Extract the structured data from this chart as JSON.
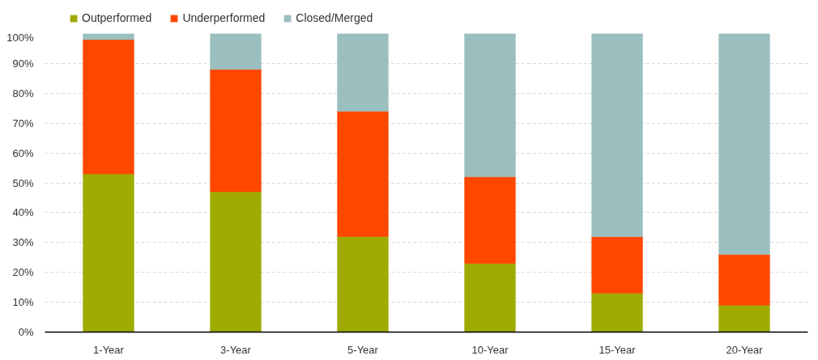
{
  "chart_data": {
    "type": "bar",
    "stacked": true,
    "categories": [
      "1-Year",
      "3-Year",
      "5-Year",
      "10-Year",
      "15-Year",
      "20-Year"
    ],
    "series": [
      {
        "name": "Outperformed",
        "color": "#9fab00",
        "values": [
          53,
          47,
          32,
          23,
          13,
          9
        ]
      },
      {
        "name": "Underperformed",
        "color": "#ff4700",
        "values": [
          45,
          41,
          42,
          29,
          19,
          17
        ]
      },
      {
        "name": "Closed/Merged",
        "color": "#9bbfbf",
        "values": [
          2,
          12,
          26,
          48,
          68,
          74
        ]
      }
    ],
    "ylim": [
      0,
      100
    ],
    "yticks": [
      {
        "value": 0,
        "label": "0%"
      },
      {
        "value": 10,
        "label": "10%"
      },
      {
        "value": 20,
        "label": "20%"
      },
      {
        "value": 30,
        "label": "30%"
      },
      {
        "value": 40,
        "label": "40%"
      },
      {
        "value": 50,
        "label": "50%"
      },
      {
        "value": 60,
        "label": "60%"
      },
      {
        "value": 70,
        "label": "70%"
      },
      {
        "value": 80,
        "label": "80%"
      },
      {
        "value": 90,
        "label": "90%"
      },
      {
        "value": 100,
        "label": "100%"
      }
    ],
    "grid": "y",
    "legend": "top left"
  }
}
